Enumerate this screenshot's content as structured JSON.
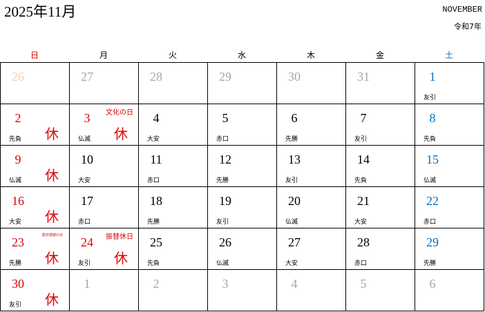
{
  "header": {
    "title": "2025年11月",
    "month_en": "NOVEMBER",
    "era": "令和7年"
  },
  "weekdays": [
    "日",
    "月",
    "火",
    "水",
    "木",
    "金",
    "土"
  ],
  "colors": {
    "sunday": "#e00000",
    "saturday": "#0070c0",
    "weekday": "#000000",
    "other_month": "#a6a6a6",
    "other_month_sunday": "#f8cbad",
    "holiday": "#e00000"
  },
  "weeks": [
    [
      {
        "day": "26",
        "type": "other_sun"
      },
      {
        "day": "27",
        "type": "other"
      },
      {
        "day": "28",
        "type": "other"
      },
      {
        "day": "29",
        "type": "other"
      },
      {
        "day": "30",
        "type": "other"
      },
      {
        "day": "31",
        "type": "other"
      },
      {
        "day": "1",
        "type": "sat",
        "rokuyo": "友引"
      }
    ],
    [
      {
        "day": "2",
        "type": "sun",
        "rokuyo": "先負",
        "kyu": "休"
      },
      {
        "day": "3",
        "type": "holiday",
        "rokuyo": "仏滅",
        "kyu": "休",
        "holiday": "文化の日"
      },
      {
        "day": "4",
        "type": "weekday",
        "rokuyo": "大安"
      },
      {
        "day": "5",
        "type": "weekday",
        "rokuyo": "赤口"
      },
      {
        "day": "6",
        "type": "weekday",
        "rokuyo": "先勝"
      },
      {
        "day": "7",
        "type": "weekday",
        "rokuyo": "友引"
      },
      {
        "day": "8",
        "type": "sat",
        "rokuyo": "先負"
      }
    ],
    [
      {
        "day": "9",
        "type": "sun",
        "rokuyo": "仏滅",
        "kyu": "休"
      },
      {
        "day": "10",
        "type": "weekday",
        "rokuyo": "大安"
      },
      {
        "day": "11",
        "type": "weekday",
        "rokuyo": "赤口"
      },
      {
        "day": "12",
        "type": "weekday",
        "rokuyo": "先勝"
      },
      {
        "day": "13",
        "type": "weekday",
        "rokuyo": "友引"
      },
      {
        "day": "14",
        "type": "weekday",
        "rokuyo": "先負"
      },
      {
        "day": "15",
        "type": "sat",
        "rokuyo": "仏滅"
      }
    ],
    [
      {
        "day": "16",
        "type": "sun",
        "rokuyo": "大安",
        "kyu": "休"
      },
      {
        "day": "17",
        "type": "weekday",
        "rokuyo": "赤口"
      },
      {
        "day": "18",
        "type": "weekday",
        "rokuyo": "先勝"
      },
      {
        "day": "19",
        "type": "weekday",
        "rokuyo": "友引"
      },
      {
        "day": "20",
        "type": "weekday",
        "rokuyo": "仏滅"
      },
      {
        "day": "21",
        "type": "weekday",
        "rokuyo": "大安"
      },
      {
        "day": "22",
        "type": "sat",
        "rokuyo": "赤口"
      }
    ],
    [
      {
        "day": "23",
        "type": "sun",
        "rokuyo": "先勝",
        "kyu": "休",
        "holiday": "勤労感謝の日",
        "holiday_tiny": true
      },
      {
        "day": "24",
        "type": "holiday",
        "rokuyo": "友引",
        "kyu": "休",
        "holiday": "振替休日"
      },
      {
        "day": "25",
        "type": "weekday",
        "rokuyo": "先負"
      },
      {
        "day": "26",
        "type": "weekday",
        "rokuyo": "仏滅"
      },
      {
        "day": "27",
        "type": "weekday",
        "rokuyo": "大安"
      },
      {
        "day": "28",
        "type": "weekday",
        "rokuyo": "赤口"
      },
      {
        "day": "29",
        "type": "sat",
        "rokuyo": "先勝"
      }
    ],
    [
      {
        "day": "30",
        "type": "sun",
        "rokuyo": "友引",
        "kyu": "休"
      },
      {
        "day": "1",
        "type": "other"
      },
      {
        "day": "2",
        "type": "other"
      },
      {
        "day": "3",
        "type": "other"
      },
      {
        "day": "4",
        "type": "other"
      },
      {
        "day": "5",
        "type": "other"
      },
      {
        "day": "6",
        "type": "other"
      }
    ]
  ]
}
